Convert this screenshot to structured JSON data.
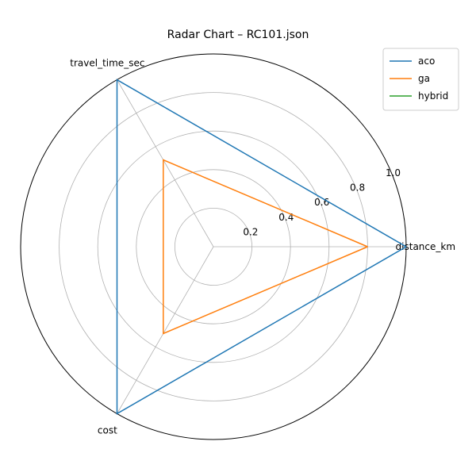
{
  "chart_data": {
    "type": "radar",
    "title": "Radar Chart – RC101.json",
    "axes": [
      "distance_km",
      "travel_time_sec",
      "cost"
    ],
    "rlim": [
      0,
      1.0
    ],
    "rticks": [
      0.2,
      0.4,
      0.6,
      0.8,
      1.0
    ],
    "rtick_labels": [
      "0.2",
      "0.4",
      "0.6",
      "0.8",
      "1.0"
    ],
    "grid": true,
    "legend_position": "top-right",
    "series": [
      {
        "name": "aco",
        "color": "#1f77b4",
        "values": [
          1.0,
          1.0,
          1.0
        ]
      },
      {
        "name": "ga",
        "color": "#ff7f0e",
        "values": [
          0.8,
          0.52,
          0.52
        ]
      },
      {
        "name": "hybrid",
        "color": "#2ca02c",
        "values": [
          0.0,
          0.0,
          0.0
        ]
      }
    ]
  }
}
